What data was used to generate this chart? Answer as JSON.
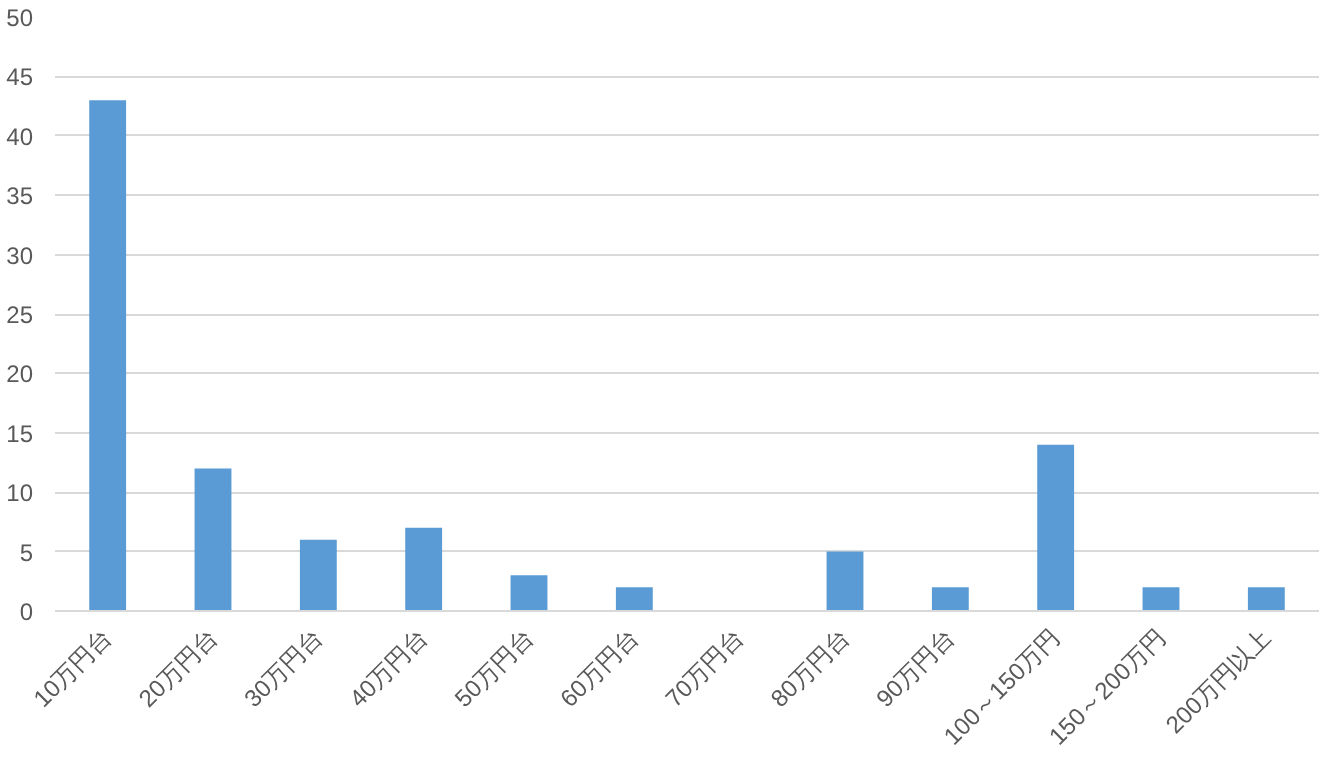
{
  "chart_data": {
    "type": "bar",
    "categories": [
      "10万円台",
      "20万円台",
      "30万円台",
      "40万円台",
      "50万円台",
      "60万円台",
      "70万円台",
      "80万円台",
      "90万円台",
      "100～150万円",
      "150～200万円",
      "200万円以上"
    ],
    "values": [
      43,
      12,
      6,
      7,
      3,
      2,
      0,
      5,
      2,
      14,
      2,
      2
    ],
    "color": "#5b9bd5",
    "ylim": [
      0,
      50
    ],
    "yticks": [
      0,
      5,
      10,
      15,
      20,
      25,
      30,
      35,
      40,
      45,
      50
    ],
    "grid": "y"
  }
}
